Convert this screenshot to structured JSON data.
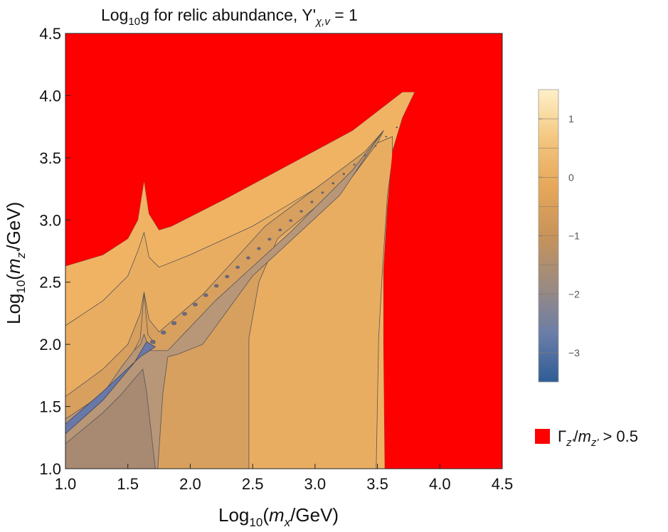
{
  "chart_data": {
    "type": "heatmap",
    "title_main": "Log",
    "title_sub": "10",
    "title_mid": "g for relic abundance, Y'",
    "title_sub2": "χ,v",
    "title_end": " = 1",
    "xlabel": {
      "pre": "Log",
      "sub": "10",
      "open": "(",
      "var": "m",
      "var_sub": "x",
      "unit": "/GeV)"
    },
    "ylabel": {
      "pre": "Log",
      "sub": "10",
      "open": "(",
      "var": "m",
      "var_sub": "z'",
      "unit": "/GeV)"
    },
    "xlim": [
      1.0,
      4.5
    ],
    "ylim": [
      1.0,
      4.5
    ],
    "xticks": [
      "1.0",
      "1.5",
      "2.0",
      "2.5",
      "3.0",
      "3.5",
      "4.0",
      "4.5"
    ],
    "yticks": [
      "1.0",
      "1.5",
      "2.0",
      "2.5",
      "3.0",
      "3.5",
      "4.0",
      "4.5"
    ],
    "colorbar": {
      "range": [
        -3.5,
        1.5
      ],
      "ticks": [
        1,
        0,
        -1,
        -2,
        -3
      ],
      "tick_labels": [
        "1",
        "0",
        "−1",
        "−2",
        "−3"
      ],
      "stops": [
        "#2f5d96",
        "#6c7ea8",
        "#9c8b80",
        "#c7935a",
        "#e6a85a",
        "#f3c67e",
        "#fff0c8"
      ]
    },
    "excluded_region": {
      "color": "#ff0000",
      "label_gamma": "Γ",
      "label_sub1": "z'",
      "label_slash": "/",
      "label_m": "m",
      "label_sub2": "z'",
      "label_cond": " > 0.5"
    },
    "regions": [
      {
        "name": "level-above-0",
        "color": "#f0b364"
      },
      {
        "name": "level-0-to-minus-1",
        "color": "#e9ad62"
      },
      {
        "name": "level-minus-1-to-minus-2",
        "color": "#d8a05f"
      },
      {
        "name": "level-minus-2",
        "color": "#b89678"
      },
      {
        "name": "level-minus-2-to-minus-3",
        "color": "#a88a72"
      },
      {
        "name": "level-minus-3",
        "color": "#6878a8"
      }
    ],
    "excluded_boundary_upper": [
      [
        1.0,
        2.63
      ],
      [
        1.3,
        2.72
      ],
      [
        1.5,
        2.85
      ],
      [
        1.58,
        3.0
      ],
      [
        1.63,
        3.32
      ],
      [
        1.67,
        3.05
      ],
      [
        1.75,
        2.92
      ],
      [
        1.85,
        2.95
      ],
      [
        2.3,
        3.18
      ],
      [
        2.8,
        3.45
      ],
      [
        3.3,
        3.72
      ],
      [
        3.7,
        4.03
      ],
      [
        3.8,
        4.03
      ]
    ],
    "excluded_boundary_right": [
      [
        3.8,
        4.03
      ],
      [
        3.7,
        3.82
      ],
      [
        3.62,
        3.55
      ],
      [
        3.58,
        3.1
      ],
      [
        3.55,
        2.6
      ],
      [
        3.55,
        2.0
      ],
      [
        3.56,
        1.0
      ]
    ]
  }
}
